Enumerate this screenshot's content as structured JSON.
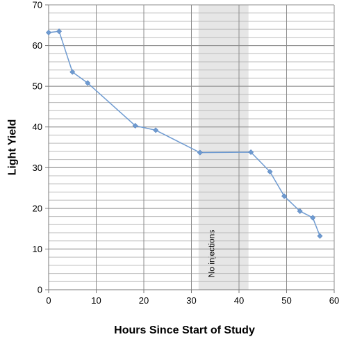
{
  "chart_data": {
    "type": "line",
    "title": "",
    "xlabel": "Hours Since Start of Study",
    "ylabel": "Light Yield",
    "xlim": [
      0,
      60
    ],
    "ylim": [
      0,
      70
    ],
    "x_ticks": [
      0,
      10,
      20,
      30,
      40,
      50,
      60
    ],
    "y_ticks": [
      0,
      10,
      20,
      30,
      40,
      50,
      60,
      70
    ],
    "x_tick_labels": [
      "0",
      "10",
      "20",
      "30",
      "40",
      "50",
      "60"
    ],
    "y_tick_labels": [
      "0",
      "10",
      "20",
      "30",
      "40",
      "50",
      "60",
      "70"
    ],
    "grid": {
      "horizontal": true,
      "vertical": true,
      "horizontal_minor_step": 2
    },
    "legend": "none",
    "series": [
      {
        "color": "#6f9bd1",
        "x": [
          0,
          2.2,
          5,
          8.2,
          18.2,
          22.5,
          31.8,
          42.5,
          46.5,
          49.5,
          52.8,
          55.5,
          57
        ],
        "y": [
          63.2,
          63.5,
          53.5,
          50.8,
          40.3,
          39.2,
          33.7,
          33.8,
          29,
          23,
          19.3,
          17.7,
          13.2
        ]
      }
    ],
    "annotations": [
      {
        "type": "shaded-region",
        "x_start": 31.5,
        "x_end": 42,
        "color": "#e6e6e6",
        "label": "No injections"
      }
    ]
  }
}
